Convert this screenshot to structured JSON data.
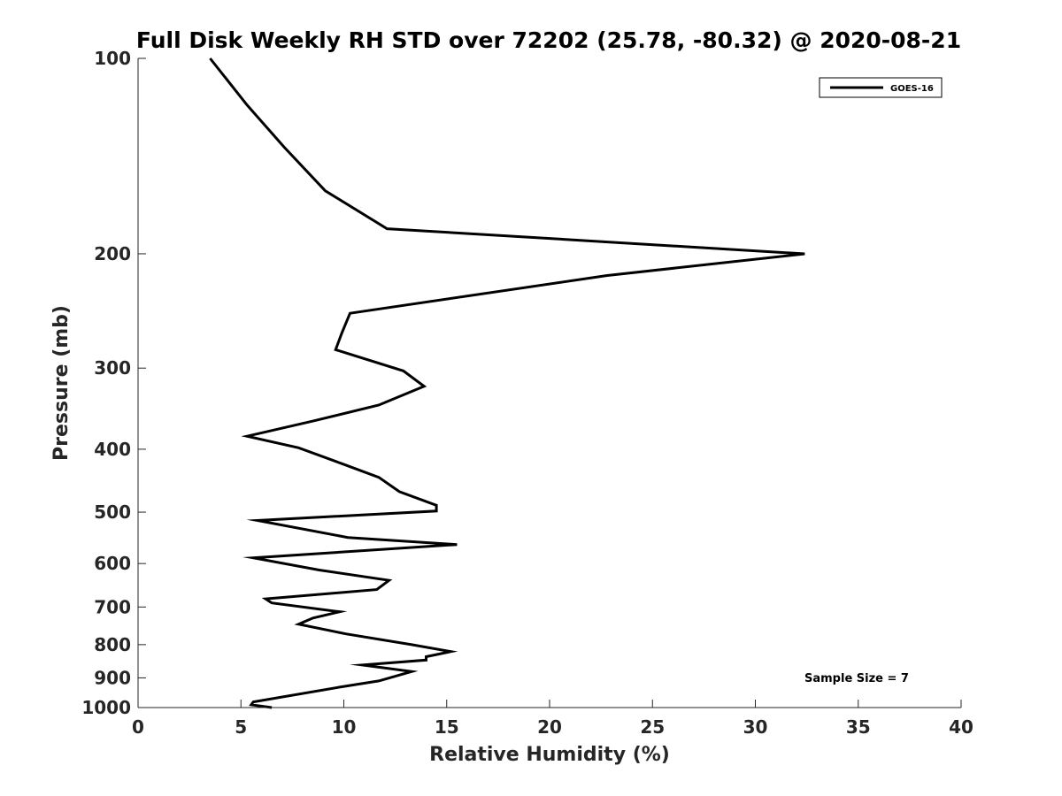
{
  "chart_data": {
    "type": "line",
    "title": "Full Disk Weekly RH STD over 72202 (25.78, -80.32) @ 2020-08-21",
    "xlabel": "Relative Humidity (%)",
    "ylabel": "Pressure (mb)",
    "xlim": [
      0,
      40
    ],
    "ylim": [
      100,
      1000
    ],
    "y_scale": "log",
    "y_reversed": true,
    "xticks": [
      0,
      5,
      10,
      15,
      20,
      25,
      30,
      35,
      40
    ],
    "yticks": [
      100,
      200,
      300,
      400,
      500,
      600,
      700,
      800,
      900,
      1000
    ],
    "grid": false,
    "legend_position": "top-right",
    "series": [
      {
        "name": "GOES-16",
        "color": "#000000",
        "x": [
          3.5,
          5.3,
          7.1,
          9.1,
          12.1,
          32.4,
          22.8,
          10.3,
          9.9,
          9.6,
          12.9,
          13.9,
          11.7,
          8.5,
          5.3,
          7.8,
          9.9,
          11.7,
          12.7,
          14.5,
          14.5,
          5.8,
          10.2,
          15.5,
          5.6,
          8.8,
          12.2,
          11.6,
          6.2,
          6.5,
          9.8,
          8.5,
          7.8,
          10.1,
          13.3,
          15.2,
          14.0,
          14.0,
          10.9,
          13.3,
          11.7,
          9.8,
          5.6,
          5.5,
          6.5
        ],
        "y": [
          100,
          118,
          137,
          160,
          183,
          200,
          216,
          247,
          265,
          281,
          303,
          320,
          342,
          362,
          382,
          398,
          421,
          442,
          465,
          488,
          498,
          515,
          547,
          561,
          588,
          614,
          637,
          658,
          680,
          690,
          712,
          728,
          744,
          770,
          800,
          820,
          835,
          845,
          860,
          880,
          910,
          930,
          980,
          990,
          1000
        ]
      }
    ],
    "annotations": [
      "Sample Size = 7"
    ]
  }
}
